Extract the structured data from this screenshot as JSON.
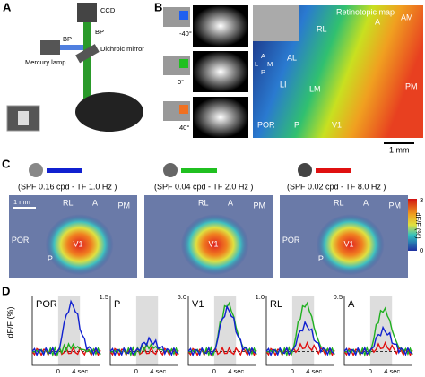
{
  "panel_a": {
    "label": "A",
    "ccd": "CCD",
    "bp_top": "BP",
    "bp_side": "BP",
    "dichroic": "Dichroic mirror",
    "lamp": "Mercury lamp"
  },
  "panel_b": {
    "label": "B",
    "angles": [
      "-40°",
      "0°",
      "40°"
    ],
    "map_title": "Retinotopic map",
    "areas": [
      "A",
      "AM",
      "RL",
      "AL",
      "LI",
      "LM",
      "PM",
      "POR",
      "P",
      "V1"
    ],
    "compass": [
      "A",
      "L",
      "M",
      "P"
    ],
    "scale": "1 mm"
  },
  "panel_c": {
    "label": "C",
    "captions": [
      "(SPF 0.16 cpd - TF 1.0 Hz )",
      "(SPF 0.04 cpd - TF 2.0 Hz )",
      "(SPF 0.02 cpd - TF 8.0 Hz )"
    ],
    "scale": "1 mm",
    "maps": [
      [
        "RL",
        "A",
        "PM",
        "POR",
        "P",
        "V1"
      ],
      [
        "RL",
        "A",
        "PM",
        "V1"
      ],
      [
        "RL",
        "A",
        "PM",
        "POR",
        "P",
        "V1"
      ]
    ],
    "colorbar": {
      "max": "3",
      "min": "0",
      "label": "dF/F (%)"
    }
  },
  "panel_d": {
    "label": "D",
    "y_label": "dF/F (%)",
    "plots": [
      {
        "name": "POR",
        "ytick": ""
      },
      {
        "name": "P",
        "ytick": "1.5"
      },
      {
        "name": "V1",
        "ytick": "6.0"
      },
      {
        "name": "RL",
        "ytick": "1.0"
      },
      {
        "name": "A",
        "ytick": "0.5"
      }
    ],
    "xticks": [
      "0",
      "4 sec"
    ]
  }
}
